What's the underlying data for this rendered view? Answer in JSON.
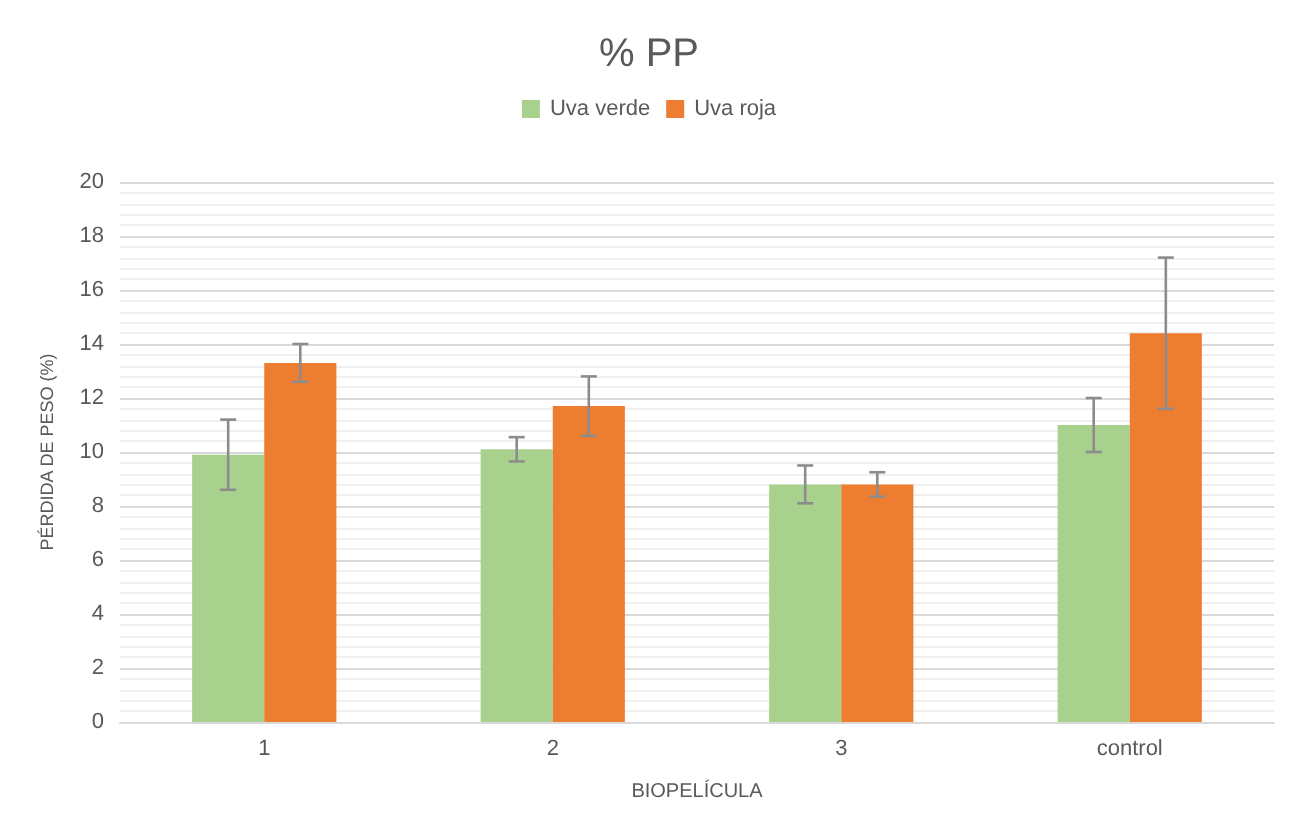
{
  "chart_data": {
    "type": "bar",
    "title": "% PP",
    "xlabel": "BIOPELÍCULA",
    "ylabel": "PÉRDIDA DE PESO (%)",
    "categories": [
      "1",
      "2",
      "3",
      "control"
    ],
    "series": [
      {
        "name": "Uva verde",
        "color": "#a9d18e",
        "values": [
          9.9,
          10.1,
          8.8,
          11.0
        ],
        "errors": [
          1.3,
          0.45,
          0.7,
          1.0
        ]
      },
      {
        "name": "Uva roja",
        "color": "#ed7d31",
        "values": [
          13.3,
          11.7,
          8.8,
          14.4
        ],
        "errors": [
          0.7,
          1.1,
          0.45,
          2.8
        ]
      }
    ],
    "ylim": [
      0,
      20
    ],
    "yticks": [
      0,
      2,
      4,
      6,
      8,
      10,
      12,
      14,
      16,
      18,
      20
    ],
    "grid": "y",
    "legend": "top"
  }
}
